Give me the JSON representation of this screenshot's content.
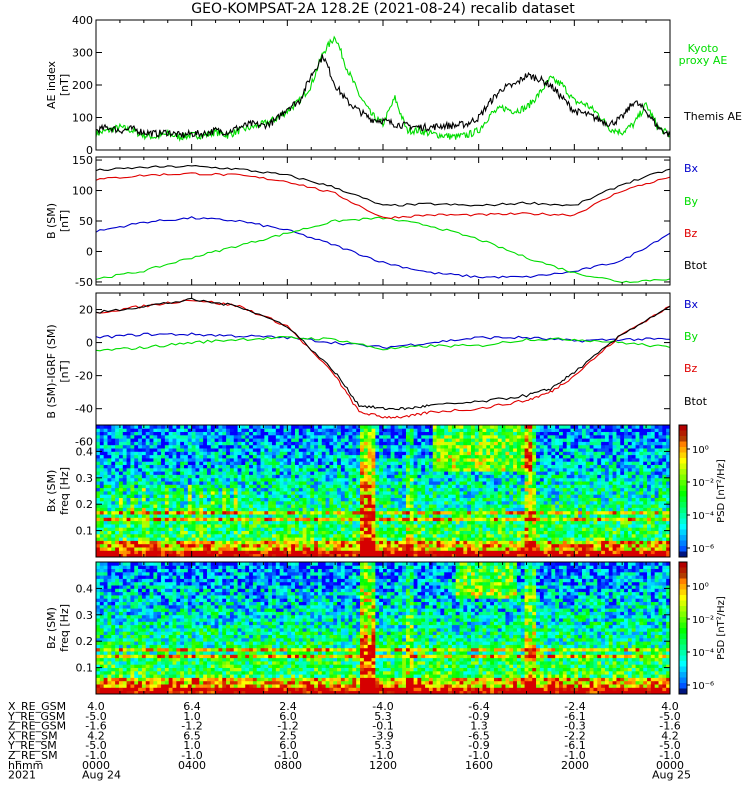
{
  "title": "GEO-KOMPSAT-2A 128.2E (2021-08-24) recalib dataset",
  "colors": {
    "black": "#000000",
    "red": "#e00000",
    "blue": "#0000cc",
    "green": "#00dd00"
  },
  "chart_data": [
    {
      "type": "line",
      "ylabel": "AE index",
      "yunit": "[nT]",
      "ylim": [
        0,
        400
      ],
      "yticks": [
        0,
        100,
        200,
        300,
        400
      ],
      "grid": false,
      "legend_position": "right",
      "series": [
        {
          "name": "Kyoto proxy AE",
          "color": "green",
          "lines": [
            "Kyoto",
            "proxy AE"
          ],
          "x": [
            0,
            0.5,
            1,
            1.5,
            2,
            2.5,
            3,
            3.5,
            4,
            4.5,
            5,
            5.5,
            6,
            6.5,
            7,
            7.5,
            8,
            8.5,
            9,
            9.5,
            10,
            10.5,
            11,
            11.5,
            12,
            12.5,
            13,
            13.5,
            14,
            14.5,
            15,
            15.5,
            16,
            16.5,
            17,
            17.5,
            18,
            18.5,
            19,
            19.5,
            20,
            20.5,
            21,
            21.5,
            22,
            22.5,
            23,
            23.5,
            24
          ],
          "y": [
            50,
            60,
            70,
            60,
            45,
            40,
            50,
            40,
            45,
            45,
            55,
            45,
            60,
            70,
            80,
            95,
            120,
            150,
            200,
            300,
            350,
            250,
            170,
            110,
            80,
            160,
            60,
            60,
            50,
            45,
            40,
            45,
            60,
            110,
            130,
            120,
            130,
            170,
            220,
            200,
            150,
            140,
            110,
            65,
            55,
            80,
            140,
            70,
            45
          ]
        },
        {
          "name": "Themis AE",
          "color": "black",
          "lines": [
            "Themis AE"
          ],
          "x": [
            0,
            0.5,
            1,
            1.5,
            2,
            2.5,
            3,
            3.5,
            4,
            4.5,
            5,
            5.5,
            6,
            6.5,
            7,
            7.5,
            8,
            8.5,
            9,
            9.5,
            10,
            10.5,
            11,
            11.5,
            12,
            12.5,
            13,
            13.5,
            14,
            14.5,
            15,
            15.5,
            16,
            16.5,
            17,
            17.5,
            18,
            18.5,
            19,
            19.5,
            20,
            20.5,
            21,
            21.5,
            22,
            22.5,
            23,
            23.5,
            24
          ],
          "y": [
            60,
            70,
            60,
            65,
            55,
            50,
            55,
            45,
            50,
            50,
            60,
            55,
            70,
            80,
            75,
            90,
            130,
            150,
            230,
            290,
            200,
            150,
            120,
            95,
            90,
            80,
            75,
            70,
            70,
            75,
            75,
            80,
            100,
            150,
            190,
            200,
            230,
            220,
            200,
            160,
            120,
            110,
            95,
            80,
            100,
            150,
            120,
            70,
            45
          ]
        }
      ]
    },
    {
      "type": "line",
      "ylabel": "B (SM)",
      "yunit": "[nT]",
      "ylim": [
        -55,
        155
      ],
      "yticks": [
        -50,
        0,
        50,
        100,
        150
      ],
      "grid": false,
      "legend_position": "right",
      "series": [
        {
          "name": "Bx",
          "color": "blue",
          "x": [
            0,
            2,
            4,
            6,
            8,
            10,
            12,
            14,
            16,
            18,
            20,
            22,
            24
          ],
          "y": [
            33,
            48,
            55,
            50,
            35,
            10,
            -18,
            -35,
            -42,
            -42,
            -33,
            -15,
            30
          ]
        },
        {
          "name": "By",
          "color": "green",
          "x": [
            0,
            2,
            4,
            6,
            8,
            10,
            12,
            14,
            16,
            18,
            20,
            22,
            24
          ],
          "y": [
            -45,
            -32,
            -10,
            10,
            30,
            50,
            55,
            42,
            20,
            -10,
            -35,
            -50,
            -45
          ]
        },
        {
          "name": "Bz",
          "color": "red",
          "x": [
            0,
            2,
            4,
            6,
            8,
            10,
            12,
            14,
            16,
            18,
            20,
            22,
            24
          ],
          "y": [
            118,
            125,
            128,
            125,
            115,
            95,
            55,
            60,
            60,
            62,
            60,
            100,
            122
          ]
        },
        {
          "name": "Btot",
          "color": "black",
          "x": [
            0,
            2,
            4,
            6,
            8,
            10,
            12,
            14,
            16,
            18,
            20,
            22,
            24
          ],
          "y": [
            133,
            138,
            140,
            135,
            125,
            105,
            75,
            78,
            75,
            80,
            75,
            110,
            135
          ]
        }
      ]
    },
    {
      "type": "line",
      "ylabel": "B (SM)-IGRF (SM)",
      "yunit": "[nT]",
      "ylim": [
        -65,
        30
      ],
      "yticks": [
        -60,
        -40,
        -20,
        0,
        20
      ],
      "grid": false,
      "legend_position": "right",
      "series": [
        {
          "name": "Bx",
          "color": "blue",
          "x": [
            0,
            2,
            4,
            6,
            8,
            10,
            12,
            14,
            16,
            18,
            20,
            22,
            24
          ],
          "y": [
            3,
            5,
            5,
            4,
            3,
            0,
            -3,
            0,
            3,
            3,
            1,
            2,
            2
          ]
        },
        {
          "name": "By",
          "color": "green",
          "x": [
            0,
            2,
            4,
            6,
            8,
            10,
            12,
            14,
            16,
            18,
            20,
            22,
            24
          ],
          "y": [
            -5,
            -3,
            0,
            2,
            3,
            2,
            -4,
            -2,
            -2,
            2,
            2,
            0,
            -3
          ]
        },
        {
          "name": "Bz",
          "color": "red",
          "x": [
            0,
            2,
            4,
            6,
            8,
            10,
            11,
            12,
            13,
            14,
            16,
            18,
            19,
            20,
            22,
            24
          ],
          "y": [
            18,
            22,
            26,
            22,
            10,
            -20,
            -42,
            -45,
            -45,
            -42,
            -40,
            -35,
            -30,
            -20,
            5,
            22
          ]
        },
        {
          "name": "Btot",
          "color": "black",
          "x": [
            0,
            2,
            4,
            6,
            8,
            10,
            11,
            12,
            13,
            14,
            16,
            18,
            19,
            20,
            22,
            24
          ],
          "y": [
            18,
            22,
            26,
            22,
            10,
            -18,
            -38,
            -40,
            -40,
            -38,
            -36,
            -32,
            -28,
            -18,
            5,
            22
          ]
        }
      ]
    },
    {
      "type": "heatmap",
      "ylabel": "Bx (SM)",
      "yunit": "freq [Hz]",
      "ylim": [
        0,
        0.5
      ],
      "yticks": [
        0.1,
        0.2,
        0.3,
        0.4
      ],
      "colorbar": {
        "label": "PSD [nT²/Hz]",
        "ticks": [
          "10⁰",
          "10⁻²",
          "10⁻⁴",
          "10⁻⁶"
        ]
      }
    },
    {
      "type": "heatmap",
      "ylabel": "Bz (SM)",
      "yunit": "freq [Hz]",
      "ylim": [
        0,
        0.5
      ],
      "yticks": [
        0.1,
        0.2,
        0.3,
        0.4
      ],
      "colorbar": {
        "label": "PSD [nT²/Hz]",
        "ticks": [
          "10⁰",
          "10⁻²",
          "10⁻⁴",
          "10⁻⁶"
        ]
      }
    }
  ],
  "ephemeris": {
    "rows": [
      {
        "label": "X_RE_GSM",
        "values": [
          "4.0",
          "6.4",
          "2.4",
          "-4.0",
          "-6.4",
          "-2.4",
          "4.0"
        ]
      },
      {
        "label": "Y_RE_GSM",
        "values": [
          "-5.0",
          "1.0",
          "6.0",
          "5.3",
          "-0.9",
          "-6.1",
          "-5.0"
        ]
      },
      {
        "label": "Z_RE_GSM",
        "values": [
          "-1.6",
          "-1.2",
          "-1.2",
          "-0.1",
          "1.3",
          "-0.3",
          "-1.6"
        ]
      },
      {
        "label": "X_RE_SM",
        "values": [
          "4.2",
          "6.5",
          "2.5",
          "-3.9",
          "-6.5",
          "-2.2",
          "4.2"
        ]
      },
      {
        "label": "Y_RE_SM",
        "values": [
          "-5.0",
          "1.0",
          "6.0",
          "5.3",
          "-0.9",
          "-6.1",
          "-5.0"
        ]
      },
      {
        "label": "Z_RE_SM",
        "values": [
          "-1.0",
          "-1.0",
          "-1.0",
          "-1.0",
          "-1.0",
          "-1.0",
          "-1.0"
        ]
      },
      {
        "label": "hhmm",
        "values": [
          "0000",
          "0400",
          "0800",
          "1200",
          "1600",
          "2000",
          "0000"
        ]
      }
    ],
    "footer_left": "2021",
    "footer_start": "Aug 24",
    "footer_end": "Aug 25"
  }
}
